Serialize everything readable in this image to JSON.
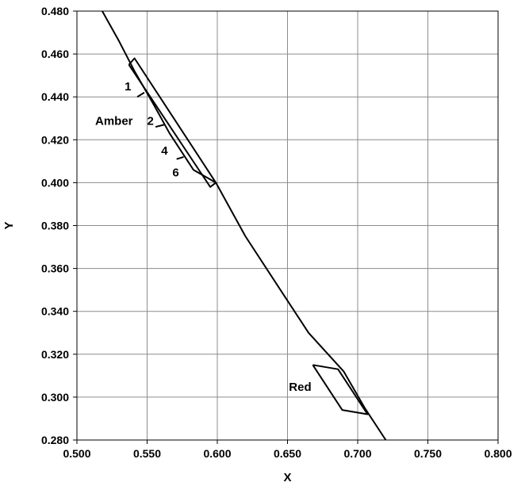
{
  "chart_data": {
    "type": "line",
    "title": "",
    "xlabel": "X",
    "ylabel": "Y",
    "xlim": [
      0.5,
      0.8
    ],
    "ylim": [
      0.28,
      0.48
    ],
    "x_ticks": [
      "0.500",
      "0.550",
      "0.600",
      "0.650",
      "0.700",
      "0.750",
      "0.800"
    ],
    "y_ticks": [
      "0.280",
      "0.300",
      "0.320",
      "0.340",
      "0.360",
      "0.380",
      "0.400",
      "0.420",
      "0.440",
      "0.460",
      "0.480"
    ],
    "grid": true,
    "series": [
      {
        "x": [
          0.518,
          0.53,
          0.541,
          0.555,
          0.566,
          0.583,
          0.599,
          0.62,
          0.645,
          0.665,
          0.69,
          0.705,
          0.72
        ],
        "y": [
          0.48,
          0.466,
          0.452,
          0.436,
          0.423,
          0.406,
          0.4,
          0.375,
          0.35,
          0.33,
          0.312,
          0.295,
          0.28
        ]
      },
      {
        "name": "Amber",
        "x": [
          0.537,
          0.541,
          0.599,
          0.595,
          0.537
        ],
        "y": [
          0.455,
          0.458,
          0.4,
          0.398,
          0.455
        ]
      },
      {
        "name": "Red",
        "x": [
          0.668,
          0.686,
          0.707,
          0.689,
          0.668
        ],
        "y": [
          0.315,
          0.313,
          0.292,
          0.294,
          0.315
        ]
      }
    ],
    "boundaries": [
      {
        "x": [
          0.543,
          0.548
        ],
        "y": [
          0.44,
          0.442
        ]
      },
      {
        "x": [
          0.556,
          0.562
        ],
        "y": [
          0.426,
          0.427
        ]
      },
      {
        "x": [
          0.571,
          0.576
        ],
        "y": [
          0.411,
          0.412
        ]
      }
    ],
    "annotations": [
      {
        "text": "1",
        "x": 0.534,
        "y": 0.443
      },
      {
        "text": "Amber",
        "x": 0.513,
        "y": 0.427
      },
      {
        "text": "2",
        "x": 0.55,
        "y": 0.427
      },
      {
        "text": "4",
        "x": 0.56,
        "y": 0.413
      },
      {
        "text": "6",
        "x": 0.568,
        "y": 0.403
      },
      {
        "text": "Red",
        "x": 0.651,
        "y": 0.303
      }
    ]
  }
}
